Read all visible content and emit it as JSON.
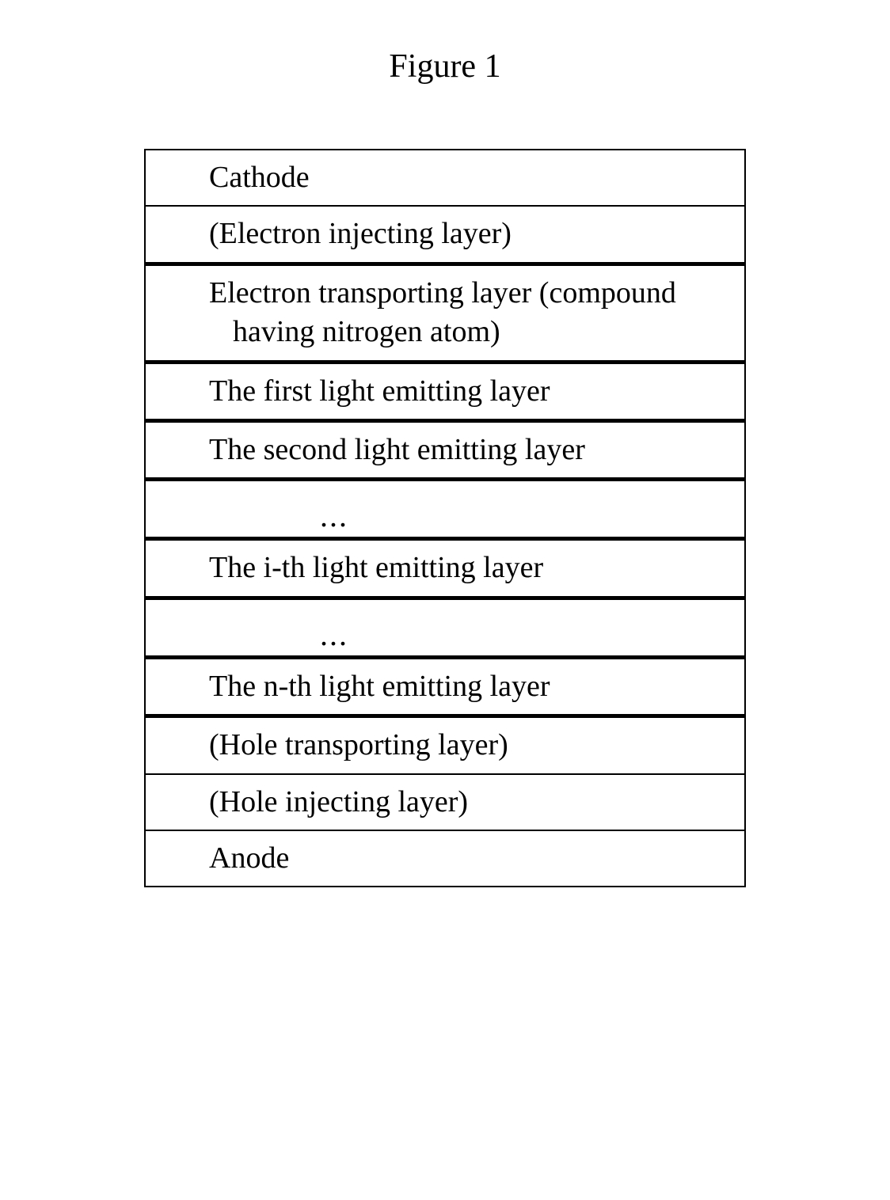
{
  "figure": {
    "title": "Figure 1",
    "title_fontsize": 42,
    "background_color": "#ffffff",
    "text_color": "#000000",
    "font_family": "Times New Roman",
    "container_width": 760,
    "border_color": "#000000",
    "thin_border_width": 2,
    "thick_border_width": 5,
    "cell_fontsize": 38,
    "layers": [
      {
        "text": "Cathode",
        "border_style": "thin",
        "indent": 0
      },
      {
        "text": "(Electron injecting layer)",
        "border_style": "thin",
        "indent": 0
      },
      {
        "text": "Electron transporting layer (compound having nitrogen atom)",
        "border_style": "thick",
        "indent": 1,
        "wrap": true
      },
      {
        "text": "The first light emitting layer",
        "border_style": "thick",
        "indent": 1,
        "wrap": true
      },
      {
        "text": "The second light emitting layer",
        "border_style": "thick",
        "indent": 1,
        "wrap": true
      },
      {
        "text": "...",
        "border_style": "thick",
        "indent": 2,
        "ellipsis": true
      },
      {
        "text": "The i-th light emitting layer",
        "border_style": "thick",
        "indent": 1,
        "wrap": true
      },
      {
        "text": "...",
        "border_style": "thick",
        "indent": 2,
        "ellipsis": true
      },
      {
        "text": "The n-th light emitting layer",
        "border_style": "thick",
        "indent": 1,
        "wrap": true
      },
      {
        "text": "(Hole transporting layer)",
        "border_style": "thick",
        "indent": 0
      },
      {
        "text": "(Hole injecting layer)",
        "border_style": "thin",
        "indent": 0
      },
      {
        "text": "Anode",
        "border_style": "thin",
        "indent": 0
      }
    ]
  }
}
